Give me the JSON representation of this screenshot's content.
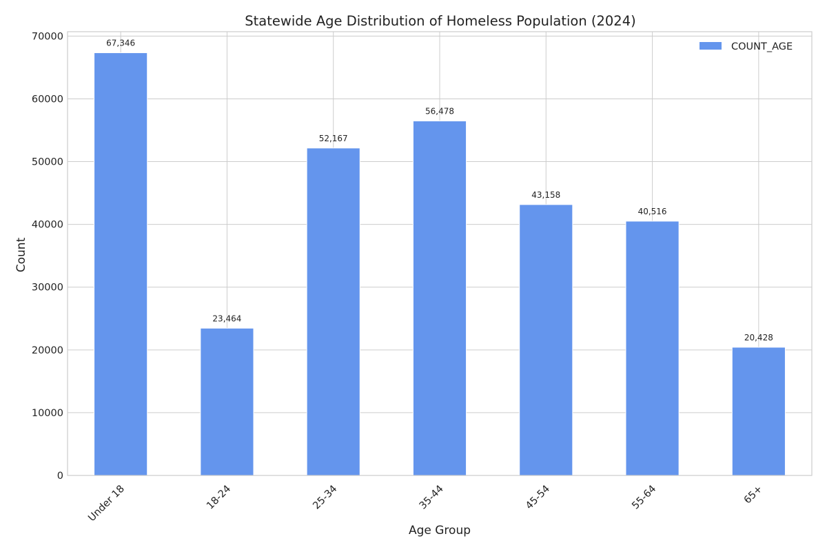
{
  "chart_data": {
    "type": "bar",
    "title": "Statewide Age Distribution of Homeless Population (2024)",
    "xlabel": "Age Group",
    "ylabel": "Count",
    "categories": [
      "Under 18",
      "18-24",
      "25-34",
      "35-44",
      "45-54",
      "55-64",
      "65+"
    ],
    "series": [
      {
        "name": "COUNT_AGE",
        "values": [
          67346,
          23464,
          52167,
          56478,
          43158,
          40516,
          20428
        ],
        "data_labels": [
          "67,346",
          "23,464",
          "52,167",
          "56,478",
          "43,158",
          "40,516",
          "20,428"
        ]
      }
    ],
    "ylim": [
      0,
      70700
    ],
    "yticks": [
      0,
      10000,
      20000,
      30000,
      40000,
      50000,
      60000,
      70000
    ],
    "ytick_labels": [
      "0",
      "10000",
      "20000",
      "30000",
      "40000",
      "50000",
      "60000",
      "70000"
    ],
    "grid": true,
    "legend": {
      "placement": "top-right",
      "labels": [
        "COUNT_AGE"
      ]
    },
    "colors": {
      "bar": "#6495ED",
      "bar_edge": "#ffffff",
      "grid": "#cccccc",
      "text": "#222222"
    }
  }
}
